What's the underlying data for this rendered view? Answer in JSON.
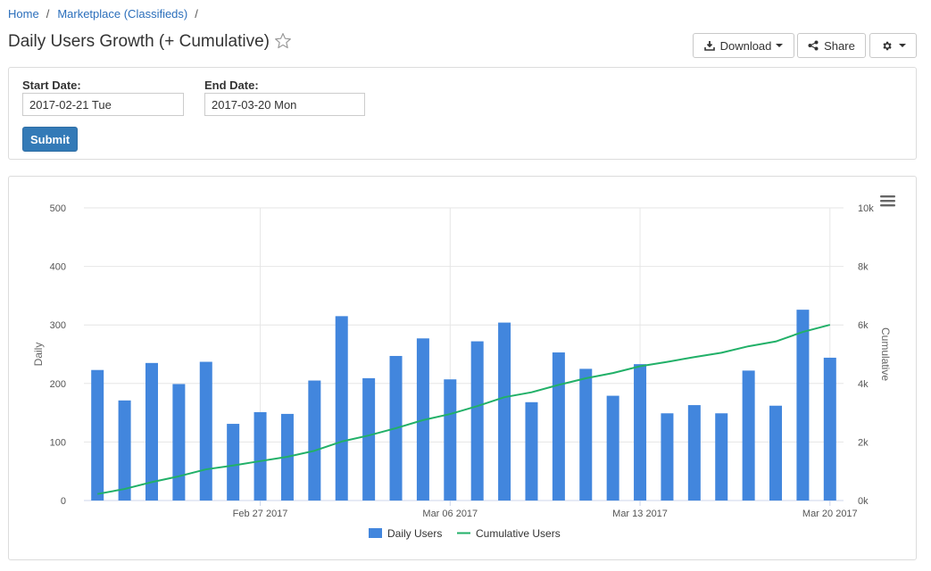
{
  "breadcrumb": {
    "home": "Home",
    "section": "Marketplace (Classifieds)",
    "separator": "/"
  },
  "page": {
    "title": "Daily Users Growth (+ Cumulative)"
  },
  "toolbar": {
    "download_label": "Download",
    "share_label": "Share"
  },
  "filters": {
    "start_label": "Start Date:",
    "start_value": "2017-02-21 Tue",
    "end_label": "End Date:",
    "end_value": "2017-03-20 Mon",
    "submit_label": "Submit"
  },
  "colors": {
    "bar": "#4286dd",
    "line": "#21b068",
    "link": "#2a6ebb",
    "button": "#337ab7"
  },
  "icons": {
    "star": "star-icon",
    "download": "download-icon",
    "share": "share-icon",
    "settings": "gear-icon",
    "menu": "hamburger-icon"
  },
  "chart_data": {
    "type": "bar",
    "x": [
      "2017-02-21",
      "2017-02-22",
      "2017-02-23",
      "2017-02-24",
      "2017-02-25",
      "2017-02-26",
      "2017-02-27",
      "2017-02-28",
      "2017-03-01",
      "2017-03-02",
      "2017-03-03",
      "2017-03-04",
      "2017-03-05",
      "2017-03-06",
      "2017-03-07",
      "2017-03-08",
      "2017-03-09",
      "2017-03-10",
      "2017-03-11",
      "2017-03-12",
      "2017-03-13",
      "2017-03-14",
      "2017-03-15",
      "2017-03-16",
      "2017-03-17",
      "2017-03-18",
      "2017-03-19",
      "2017-03-20"
    ],
    "x_tick_labels": [
      "Feb 27 2017",
      "Mar 06 2017",
      "Mar 13 2017",
      "Mar 20 2017"
    ],
    "series": [
      {
        "name": "Daily Users",
        "type": "bar",
        "axis": "left",
        "values": [
          223,
          171,
          235,
          199,
          237,
          131,
          151,
          148,
          205,
          315,
          209,
          247,
          277,
          207,
          272,
          304,
          168,
          253,
          225,
          179,
          233,
          149,
          163,
          149,
          222,
          162,
          326,
          244
        ]
      },
      {
        "name": "Cumulative Users",
        "type": "line",
        "axis": "right",
        "values": [
          223,
          394,
          629,
          828,
          1065,
          1196,
          1347,
          1495,
          1700,
          2015,
          2224,
          2471,
          2748,
          2955,
          3227,
          3531,
          3699,
          3952,
          4177,
          4356,
          4589,
          4738,
          4901,
          5050,
          5272,
          5434,
          5760,
          6004
        ]
      }
    ],
    "y_left": {
      "label": "Daily",
      "lim": [
        0,
        500
      ],
      "ticks": [
        "0",
        "100",
        "200",
        "300",
        "400",
        "500"
      ]
    },
    "y_right": {
      "label": "Cumulative",
      "lim": [
        0,
        10000
      ],
      "ticks": [
        "0k",
        "2k",
        "4k",
        "6k",
        "8k",
        "10k"
      ]
    },
    "legend": {
      "position": "bottom-center",
      "items": [
        "Daily Users",
        "Cumulative Users"
      ]
    },
    "grid": true
  }
}
